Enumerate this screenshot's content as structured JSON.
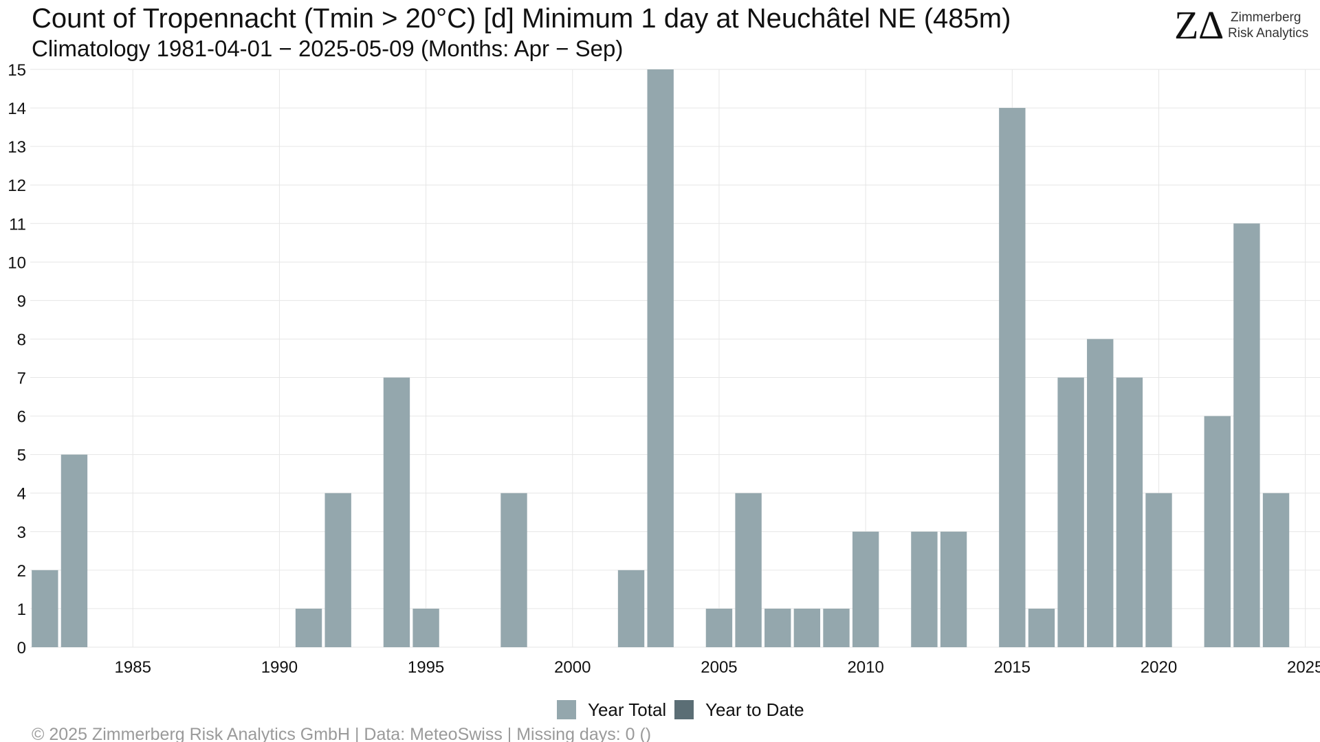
{
  "chart_data": {
    "type": "bar",
    "title": "Count of Tropennacht (Tmin > 20°C) [d] Minimum 1 day at Neuchâtel  NE (485m)",
    "subtitle": "Climatology 1981-04-01 − 2025-05-09 (Months: Apr − Sep)",
    "xlabel": "",
    "ylabel": "",
    "xlim": [
      1981.5,
      2025.5
    ],
    "ylim": [
      0,
      15
    ],
    "x_ticks": [
      1985,
      1990,
      1995,
      2000,
      2005,
      2010,
      2015,
      2020,
      2025
    ],
    "y_ticks": [
      0,
      1,
      2,
      3,
      4,
      5,
      6,
      7,
      8,
      9,
      10,
      11,
      12,
      13,
      14,
      15
    ],
    "grid": true,
    "legend_position": "bottom",
    "series": [
      {
        "name": "Year Total",
        "color": "#94a7ad",
        "x": [
          1982,
          1983,
          1991,
          1992,
          1994,
          1995,
          1998,
          2002,
          2003,
          2005,
          2006,
          2007,
          2008,
          2009,
          2010,
          2012,
          2013,
          2015,
          2016,
          2017,
          2018,
          2019,
          2020,
          2022,
          2023,
          2024
        ],
        "values": [
          2,
          5,
          1,
          4,
          7,
          1,
          4,
          2,
          15,
          1,
          4,
          1,
          1,
          1,
          3,
          3,
          3,
          14,
          1,
          7,
          8,
          7,
          4,
          6,
          11,
          4
        ]
      },
      {
        "name": "Year to Date",
        "color": "#5b6e75",
        "x": [
          2025
        ],
        "values": [
          0
        ]
      }
    ]
  },
  "logo": {
    "mark_z": "Z",
    "mark_delta": "Δ",
    "line1": "Zimmerberg",
    "line2": "Risk Analytics",
    "delta_color": "#e0201b"
  },
  "caption": "©  2025 Zimmerberg Risk Analytics GmbH | Data: MeteoSwiss | Missing days: 0 ()"
}
